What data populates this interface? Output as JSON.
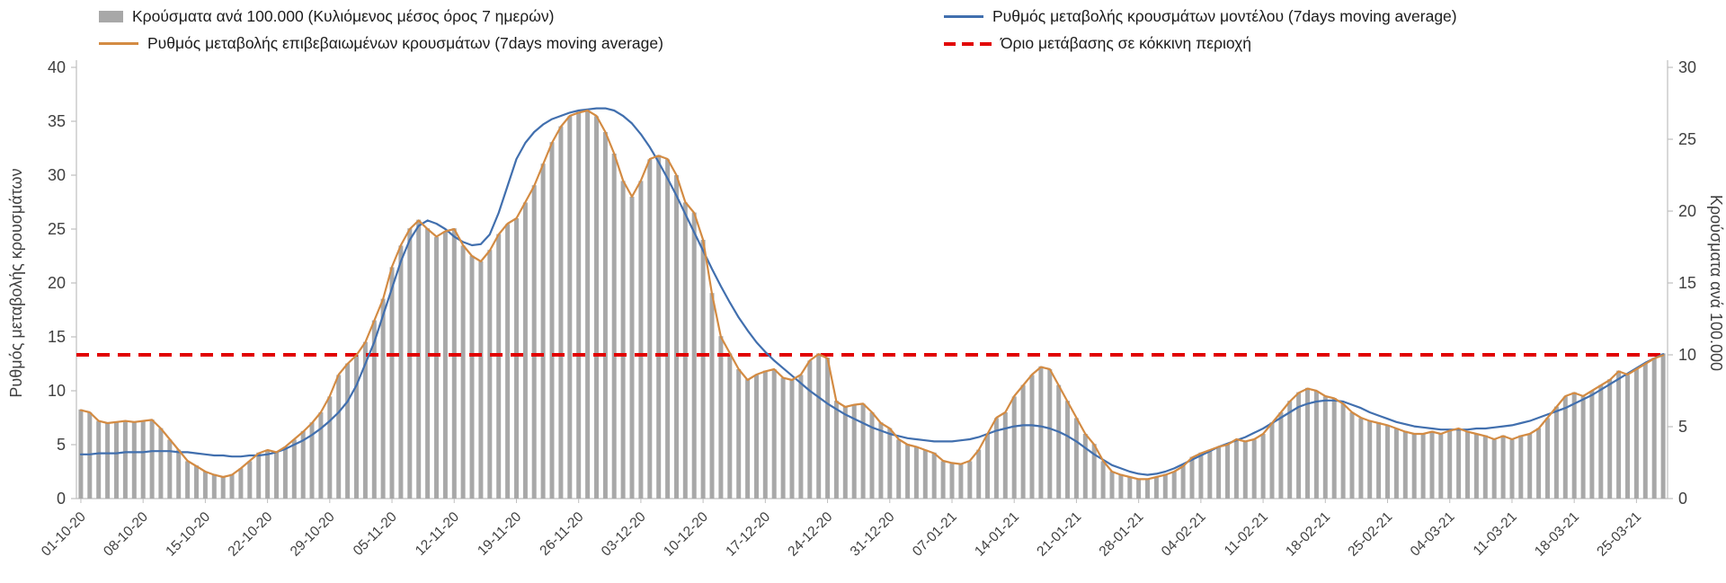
{
  "legend": {
    "items": [
      {
        "label": "Κρούσματα ανά 100.000 (Κυλιόμενος μέσος όρος 7 ημερών)",
        "swatch": "bar",
        "color": "#a8a8a8"
      },
      {
        "label": "Ρυθμός μεταβολής κρουσμάτων μοντέλου (7days moving average)",
        "swatch": "line",
        "color": "#416fae"
      },
      {
        "label": "Ρυθμός μεταβολής επιβεβαιωμένων κρουσμάτων (7days moving average)",
        "swatch": "line",
        "color": "#d38b43"
      },
      {
        "label": "Όριο μετάβασης σε κόκκινη περιοχή",
        "swatch": "dash",
        "color": "#e10000"
      }
    ]
  },
  "chart_data": {
    "type": "combo",
    "x_tick_every": 7,
    "x_tick_labels": [
      "01-10-20",
      "08-10-20",
      "15-10-20",
      "22-10-20",
      "29-10-20",
      "05-11-20",
      "12-11-20",
      "19-11-20",
      "26-11-20",
      "03-12-20",
      "10-12-20",
      "17-12-20",
      "24-12-20",
      "31-12-20",
      "07-01-21",
      "14-01-21",
      "21-01-21",
      "28-01-21",
      "04-02-21",
      "11-02-21",
      "18-02-21",
      "25-02-21",
      "04-03-21",
      "11-03-21",
      "18-03-21",
      "25-03-21"
    ],
    "left_axis": {
      "label": "Ρυθμός μεταβολής κρουσμάτων",
      "min": 0,
      "max": 40,
      "step": 5
    },
    "right_axis": {
      "label": "Κρούσματα ανά 100.000",
      "min": 0,
      "max": 30,
      "step": 5
    },
    "threshold": {
      "label": "Όριο μετάβασης σε κόκκινη περιοχή",
      "value_left_axis": 13.33,
      "value_right_axis": 10,
      "color": "#e10000"
    },
    "series": [
      {
        "key": "cases-per-100k",
        "name": "Κρούσματα ανά 100.000 (Κυλιόμενος μέσος όρος 7 ημερών)",
        "type": "bar",
        "axis": "right",
        "color": "#a8a8a8",
        "values": [
          6.2,
          6.0,
          5.4,
          5.3,
          5.3,
          5.4,
          5.3,
          5.4,
          5.5,
          4.9,
          4.1,
          3.4,
          2.6,
          2.3,
          1.9,
          1.7,
          1.5,
          1.7,
          2.1,
          2.6,
          3.2,
          3.4,
          3.2,
          3.6,
          4.1,
          4.7,
          5.3,
          6.0,
          7.1,
          8.6,
          9.4,
          10.0,
          10.9,
          12.4,
          13.9,
          16.1,
          17.6,
          18.8,
          19.4,
          18.8,
          18.2,
          18.6,
          18.8,
          17.6,
          16.9,
          16.5,
          17.3,
          18.4,
          19.1,
          19.5,
          20.6,
          21.8,
          23.3,
          24.8,
          25.9,
          26.6,
          26.9,
          27.0,
          26.6,
          25.5,
          24.0,
          22.1,
          21.0,
          22.1,
          23.6,
          23.9,
          23.6,
          22.5,
          20.6,
          19.9,
          18.0,
          14.3,
          11.3,
          10.1,
          9.0,
          8.3,
          8.6,
          8.9,
          9.0,
          8.4,
          8.3,
          8.6,
          9.6,
          10.1,
          9.8,
          6.8,
          6.4,
          6.5,
          6.6,
          6.0,
          5.3,
          4.9,
          4.1,
          3.8,
          3.6,
          3.4,
          3.2,
          2.6,
          2.5,
          2.4,
          2.6,
          3.4,
          4.5,
          5.6,
          6.0,
          7.1,
          7.9,
          8.6,
          9.2,
          9.0,
          7.9,
          6.8,
          5.6,
          4.5,
          3.8,
          2.6,
          1.9,
          1.7,
          1.5,
          1.4,
          1.4,
          1.5,
          1.7,
          1.9,
          2.3,
          2.9,
          3.2,
          3.4,
          3.6,
          3.8,
          4.1,
          4.0,
          4.1,
          4.5,
          5.3,
          6.0,
          6.8,
          7.4,
          7.7,
          7.5,
          7.1,
          7.0,
          6.6,
          6.0,
          5.6,
          5.4,
          5.3,
          5.1,
          4.9,
          4.7,
          4.5,
          4.5,
          4.7,
          4.5,
          4.7,
          4.9,
          4.7,
          4.5,
          4.4,
          4.1,
          4.4,
          4.1,
          4.4,
          4.5,
          4.9,
          5.6,
          6.4,
          7.1,
          7.4,
          7.1,
          7.5,
          7.9,
          8.3,
          8.9,
          8.6,
          9.0,
          9.4,
          9.8,
          10.1
        ]
      },
      {
        "key": "model-rate",
        "name": "Ρυθμός μεταβολής κρουσμάτων μοντέλου (7days moving average)",
        "type": "line",
        "axis": "left",
        "color": "#416fae",
        "values": [
          4.1,
          4.1,
          4.2,
          4.2,
          4.2,
          4.3,
          4.3,
          4.3,
          4.4,
          4.4,
          4.4,
          4.3,
          4.3,
          4.2,
          4.1,
          4.0,
          4.0,
          3.9,
          3.9,
          4.0,
          4.0,
          4.1,
          4.3,
          4.6,
          5.0,
          5.4,
          5.9,
          6.5,
          7.2,
          8.0,
          9.0,
          10.5,
          12.5,
          14.5,
          17.0,
          19.5,
          22.0,
          24.0,
          25.3,
          25.8,
          25.5,
          25.0,
          24.3,
          23.8,
          23.5,
          23.6,
          24.5,
          26.5,
          29.0,
          31.5,
          33.0,
          34.0,
          34.7,
          35.2,
          35.5,
          35.8,
          36.0,
          36.1,
          36.2,
          36.2,
          36.0,
          35.5,
          34.8,
          33.8,
          32.6,
          31.2,
          29.7,
          28.1,
          26.4,
          24.7,
          23.0,
          21.3,
          19.7,
          18.2,
          16.8,
          15.6,
          14.5,
          13.6,
          12.8,
          12.1,
          11.4,
          10.7,
          10.0,
          9.4,
          8.8,
          8.3,
          7.8,
          7.4,
          7.0,
          6.6,
          6.3,
          6.0,
          5.8,
          5.6,
          5.5,
          5.4,
          5.3,
          5.3,
          5.3,
          5.4,
          5.5,
          5.7,
          6.0,
          6.3,
          6.5,
          6.7,
          6.8,
          6.8,
          6.7,
          6.5,
          6.2,
          5.8,
          5.3,
          4.7,
          4.1,
          3.6,
          3.1,
          2.8,
          2.5,
          2.3,
          2.2,
          2.3,
          2.5,
          2.8,
          3.2,
          3.6,
          4.0,
          4.4,
          4.8,
          5.1,
          5.4,
          5.7,
          6.1,
          6.5,
          7.0,
          7.5,
          8.0,
          8.5,
          8.8,
          9.0,
          9.1,
          9.1,
          9.0,
          8.7,
          8.4,
          8.0,
          7.7,
          7.4,
          7.1,
          6.9,
          6.7,
          6.6,
          6.5,
          6.4,
          6.4,
          6.4,
          6.4,
          6.5,
          6.5,
          6.6,
          6.7,
          6.8,
          7.0,
          7.2,
          7.5,
          7.8,
          8.1,
          8.4,
          8.8,
          9.2,
          9.6,
          10.1,
          10.6,
          11.1,
          11.6,
          12.1,
          12.6,
          13.0,
          13.4
        ]
      },
      {
        "key": "confirmed-rate",
        "name": "Ρυθμός μεταβολής επιβεβαιωμένων κρουσμάτων (7days moving average)",
        "type": "line",
        "axis": "left",
        "color": "#d38b43",
        "values": [
          8.2,
          8.0,
          7.2,
          7.0,
          7.1,
          7.2,
          7.1,
          7.2,
          7.3,
          6.5,
          5.5,
          4.5,
          3.5,
          3.0,
          2.5,
          2.2,
          2.0,
          2.2,
          2.8,
          3.5,
          4.2,
          4.5,
          4.3,
          4.8,
          5.5,
          6.2,
          7.0,
          8.0,
          9.5,
          11.5,
          12.5,
          13.3,
          14.5,
          16.5,
          18.5,
          21.5,
          23.5,
          25.0,
          25.8,
          25.0,
          24.3,
          24.8,
          25.0,
          23.5,
          22.5,
          22.0,
          23.0,
          24.5,
          25.5,
          26.0,
          27.5,
          29.0,
          31.0,
          33.0,
          34.5,
          35.5,
          35.8,
          36.0,
          35.5,
          34.0,
          32.0,
          29.5,
          28.0,
          29.5,
          31.5,
          31.8,
          31.5,
          30.0,
          27.5,
          26.5,
          24.0,
          19.0,
          15.0,
          13.5,
          12.0,
          11.0,
          11.5,
          11.8,
          12.0,
          11.2,
          11.0,
          11.5,
          12.8,
          13.4,
          13.0,
          9.0,
          8.5,
          8.7,
          8.8,
          8.0,
          7.0,
          6.5,
          5.5,
          5.0,
          4.8,
          4.5,
          4.2,
          3.5,
          3.3,
          3.2,
          3.5,
          4.5,
          6.0,
          7.5,
          8.0,
          9.5,
          10.5,
          11.5,
          12.2,
          12.0,
          10.5,
          9.0,
          7.5,
          6.0,
          5.0,
          3.5,
          2.5,
          2.2,
          2.0,
          1.8,
          1.8,
          2.0,
          2.2,
          2.5,
          3.0,
          3.8,
          4.2,
          4.5,
          4.8,
          5.0,
          5.5,
          5.3,
          5.5,
          6.0,
          7.0,
          8.0,
          9.0,
          9.8,
          10.2,
          10.0,
          9.5,
          9.3,
          8.8,
          8.0,
          7.5,
          7.2,
          7.0,
          6.8,
          6.5,
          6.2,
          6.0,
          6.0,
          6.2,
          6.0,
          6.3,
          6.5,
          6.2,
          6.0,
          5.8,
          5.5,
          5.8,
          5.5,
          5.8,
          6.0,
          6.5,
          7.5,
          8.5,
          9.5,
          9.8,
          9.5,
          10.0,
          10.5,
          11.0,
          11.8,
          11.5,
          12.0,
          12.5,
          13.0,
          13.3
        ]
      }
    ]
  }
}
